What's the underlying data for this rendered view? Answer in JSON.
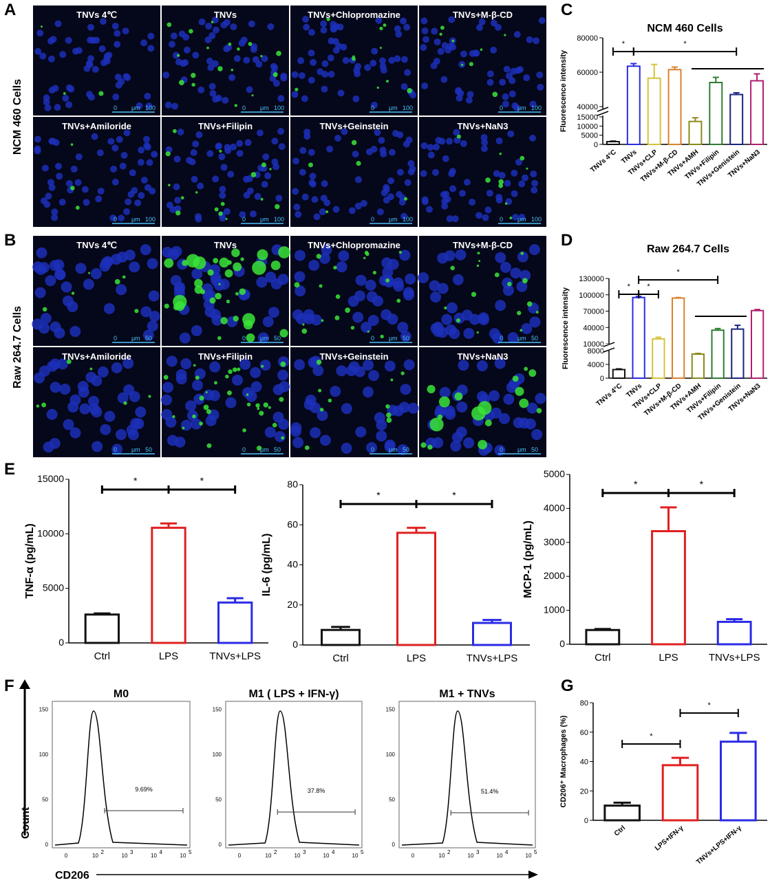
{
  "panels": {
    "A": "A",
    "B": "B",
    "C": "C",
    "D": "D",
    "E": "E",
    "F": "F",
    "G": "G"
  },
  "row_labels": {
    "ncm": "NCM 460 Cells",
    "raw": "Raw 264.7 Cells"
  },
  "micrographs": {
    "A": {
      "labels": [
        "TNVs 4℃",
        "TNVs",
        "TNVs+Chlopromazine",
        "TNVs+M-β-CD",
        "TNVs+Amiloride",
        "TNVs+Filipin",
        "TNVs+Geinstein",
        "TNVs+NaN3"
      ],
      "scale": {
        "zero": "0",
        "unit": "μm",
        "value": "100"
      }
    },
    "B": {
      "labels": [
        "TNVs 4℃",
        "TNVs",
        "TNVs+Chlopromazine",
        "TNVs+M-β-CD",
        "TNVs+Amiloride",
        "TNVs+Filipin",
        "TNVs+Geinstein",
        "TNVs+NaN3"
      ],
      "scale": {
        "zero": "0",
        "unit": "μm",
        "value": "50"
      }
    }
  },
  "flow": {
    "xlabel": "CD206",
    "ylabel": "Count",
    "yticks": [
      "0",
      "50",
      "100",
      "150"
    ],
    "xticks": [
      "0",
      "10",
      "10",
      "10",
      "10"
    ],
    "xexp": [
      "",
      "2",
      "3",
      "4",
      "5"
    ],
    "histograms": [
      {
        "title": "M0",
        "percent": "9.69%"
      },
      {
        "title": "M1 ( LPS + IFN-γ)",
        "percent": "37.8%"
      },
      {
        "title": "M1 + TNVs",
        "percent": "51.4%"
      }
    ]
  },
  "colors": {
    "black": "#111111",
    "blue": "#2a2ae6",
    "yellow": "#d4c23a",
    "orange": "#d9822b",
    "olive": "#8a8a1a",
    "green": "#2e7d32",
    "navy": "#1a237e",
    "magenta": "#b0206e",
    "red": "#e02020"
  },
  "chart_data": [
    {
      "id": "C",
      "type": "bar",
      "title": "NCM 460 Cells",
      "ylabel": "Fluorescence intensity",
      "categories": [
        "TNVs 4°C",
        "TNVs",
        "TNVs+CLP",
        "TNVs+M-β-CD",
        "TNVs+AMH",
        "TNVs+Filipin",
        "TNVs+Genistein",
        "TNVs+NaN3"
      ],
      "values": [
        1500,
        63500,
        56500,
        61500,
        12500,
        54000,
        47000,
        55000
      ],
      "errors": [
        300,
        1500,
        8000,
        1500,
        2000,
        3000,
        1000,
        4000
      ],
      "bar_colors": [
        "#111111",
        "#2a2ae6",
        "#d4c23a",
        "#d9822b",
        "#8a8a1a",
        "#2e7d32",
        "#1a237e",
        "#b0206e"
      ],
      "yticks": [
        "0",
        "5000",
        "10000",
        "15000",
        "40000",
        "60000",
        "80000"
      ],
      "axis_break": [
        15000,
        40000
      ],
      "significance": [
        "*",
        "*"
      ]
    },
    {
      "id": "D",
      "type": "bar",
      "title": "Raw 264.7 Cells",
      "ylabel": "Fluorescence intensity",
      "categories": [
        "TNVs 4°C",
        "TNVs",
        "TNVs+CLP",
        "TNVs+M-β-CD",
        "TNVs+AMH",
        "TNVs+Filipin",
        "TNVs+Genistein",
        "TNVs+NaN3"
      ],
      "values": [
        2500,
        95000,
        19000,
        94000,
        7000,
        35000,
        37000,
        71000
      ],
      "errors": [
        200,
        2000,
        3000,
        1000,
        200,
        3000,
        7000,
        2000
      ],
      "bar_colors": [
        "#111111",
        "#2a2ae6",
        "#d4c23a",
        "#d9822b",
        "#8a8a1a",
        "#2e7d32",
        "#1a237e",
        "#b0206e"
      ],
      "yticks": [
        "0",
        "4000",
        "8000",
        "10000",
        "40000",
        "70000",
        "100000",
        "130000"
      ],
      "axis_break": [
        8000,
        10000
      ],
      "significance": [
        "*",
        "*",
        "*"
      ]
    },
    {
      "id": "E1",
      "type": "bar",
      "ylabel": "TNF-α (pg/mL)",
      "categories": [
        "Ctrl",
        "LPS",
        "TNVs+LPS"
      ],
      "values": [
        2600,
        10550,
        3700
      ],
      "errors": [
        100,
        400,
        400
      ],
      "bar_colors": [
        "#111111",
        "#e02020",
        "#2a2ae6"
      ],
      "ylim": [
        0,
        15000
      ],
      "yticks": [
        "0",
        "5000",
        "10000",
        "15000"
      ],
      "significance": [
        "*",
        "*"
      ]
    },
    {
      "id": "E2",
      "type": "bar",
      "ylabel": "IL-6 (pg/mL)",
      "categories": [
        "Ctrl",
        "LPS",
        "TNVs+LPS"
      ],
      "values": [
        7.5,
        56,
        11
      ],
      "errors": [
        1.5,
        2.5,
        1.5
      ],
      "bar_colors": [
        "#111111",
        "#e02020",
        "#2a2ae6"
      ],
      "ylim": [
        0,
        80
      ],
      "yticks": [
        "0",
        "20",
        "40",
        "60",
        "80"
      ],
      "significance": [
        "*",
        "*"
      ]
    },
    {
      "id": "E3",
      "type": "bar",
      "ylabel": "MCP-1 (pg/mL)",
      "categories": [
        "Ctrl",
        "LPS",
        "TNVs+LPS"
      ],
      "values": [
        420,
        3330,
        660
      ],
      "errors": [
        30,
        700,
        80
      ],
      "bar_colors": [
        "#111111",
        "#e02020",
        "#2a2ae6"
      ],
      "ylim": [
        0,
        5000
      ],
      "yticks": [
        "0",
        "1000",
        "2000",
        "3000",
        "4000",
        "5000"
      ],
      "significance": [
        "*",
        "*"
      ]
    },
    {
      "id": "G",
      "type": "bar",
      "ylabel": "CD206⁺ Macrophages (%)",
      "categories": [
        "Ctrl",
        "LPS+IFN-γ",
        "TNVs+LPS+IFN-γ"
      ],
      "values": [
        10,
        37.5,
        53.5
      ],
      "errors": [
        2,
        5,
        6
      ],
      "bar_colors": [
        "#111111",
        "#e02020",
        "#2a2ae6"
      ],
      "ylim": [
        0,
        80
      ],
      "yticks": [
        "0",
        "20",
        "40",
        "60",
        "80"
      ],
      "significance": [
        "*",
        "*"
      ]
    }
  ]
}
